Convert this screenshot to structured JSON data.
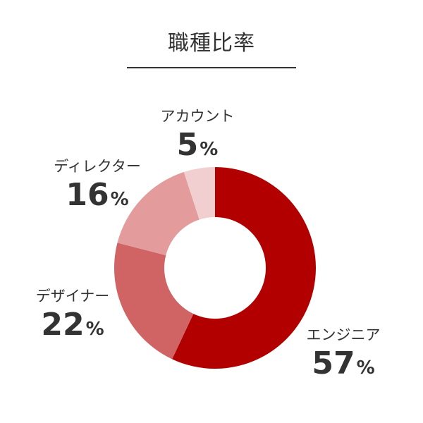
{
  "chart_data": {
    "type": "pie",
    "title": "職種比率",
    "unit": "%",
    "categories": [
      "エンジニア",
      "デザイナー",
      "ディレクター",
      "アカウント"
    ],
    "values": [
      57,
      22,
      16,
      5
    ],
    "colors": [
      "#b20000",
      "#d06363",
      "#e39b9b",
      "#f1cfd0"
    ]
  }
}
